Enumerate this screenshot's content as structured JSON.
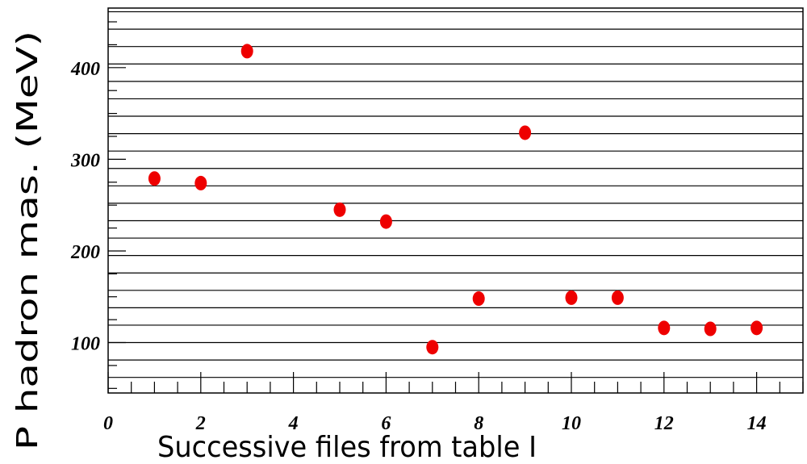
{
  "chart_data": {
    "type": "scatter",
    "title": "",
    "xlabel": "Successive files from table I",
    "ylabel": "P hadron mas. (MeV)",
    "xlim": [
      0,
      15
    ],
    "ylim": [
      45,
      465
    ],
    "x_ticks": [
      0,
      2,
      4,
      6,
      8,
      10,
      12,
      14
    ],
    "x_tick_labels": [
      "0",
      "2",
      "4",
      "6",
      "8",
      "10",
      "12",
      "14"
    ],
    "y_ticks": [
      100,
      200,
      300,
      400
    ],
    "y_tick_labels": [
      "100",
      "200",
      "300",
      "400"
    ],
    "grid": "horizontal lines every 19 MeV",
    "marker_color": "#ee0000",
    "series": [
      {
        "x": [
          1,
          2,
          3,
          5,
          6,
          7,
          8,
          9,
          10,
          11,
          12,
          13,
          14
        ],
        "y": [
          279,
          274,
          418,
          245,
          232,
          95,
          148,
          329,
          149,
          149,
          116,
          115,
          116
        ]
      }
    ]
  }
}
